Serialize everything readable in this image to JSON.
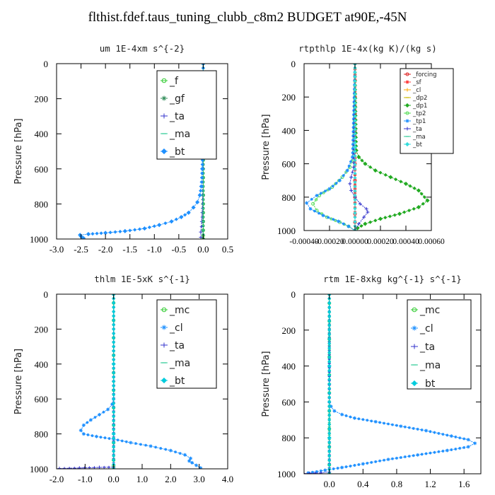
{
  "title": "flthist.fdef.taus_tuning_clubb_c8m2  BUDGET at90E,-45N",
  "chart_data": [
    {
      "type": "line",
      "title": "um  1E-4xm s^{-2}",
      "ylabel": "Pressure [hPa]",
      "xlim": [
        -3.0,
        0.5
      ],
      "ylim": [
        1000,
        0
      ],
      "xticks": [
        -3.0,
        -2.5,
        -2.0,
        -1.5,
        -1.0,
        -0.5,
        0.0,
        0.5
      ],
      "xtick_labels": [
        "-3.0",
        "-2.5",
        "-2.0",
        "-1.5",
        "-1.0",
        "-0.5",
        "0.0",
        "0.5"
      ],
      "yticks": [
        0,
        200,
        400,
        600,
        800,
        1000
      ],
      "ytick_labels": [
        "0",
        "200",
        "400",
        "600",
        "800",
        "1000"
      ],
      "legend_position": "top-right",
      "series": [
        {
          "name": "_f",
          "color": "#33cc33",
          "x": [
            0,
            0,
            0,
            0,
            0,
            0,
            0,
            0,
            0,
            0,
            0,
            0,
            0,
            0,
            0
          ],
          "y": [
            0,
            50,
            150,
            250,
            350,
            450,
            550,
            650,
            750,
            800,
            850,
            900,
            950,
            980,
            1000
          ]
        },
        {
          "name": "_gf",
          "color": "#2e8b57",
          "x": [
            0,
            0,
            0,
            0,
            0,
            0,
            0,
            0
          ],
          "y": [
            0,
            150,
            300,
            450,
            600,
            750,
            900,
            1000
          ]
        },
        {
          "name": "_ta",
          "color": "#3333cc",
          "x": [
            0,
            0,
            -0.01,
            -0.02,
            -0.03,
            -0.05,
            -0.05
          ],
          "y": [
            0,
            600,
            750,
            850,
            900,
            960,
            990
          ]
        },
        {
          "name": "_ma",
          "color": "#33cc99",
          "x": [
            0,
            0,
            0,
            0,
            0
          ],
          "y": [
            0,
            300,
            600,
            900,
            1000
          ]
        },
        {
          "name": "_bt",
          "color": "#1e90ff",
          "x": [
            0,
            -0.01,
            -0.02,
            -0.04,
            -0.07,
            -0.12,
            -0.2,
            -0.3,
            -0.45,
            -0.65,
            -0.9,
            -1.2,
            -1.6,
            -2.0,
            -2.35,
            -2.52,
            -2.5,
            -2.45
          ],
          "y": [
            0,
            450,
            600,
            700,
            750,
            790,
            820,
            850,
            875,
            900,
            920,
            940,
            955,
            965,
            972,
            977,
            985,
            995
          ]
        }
      ]
    },
    {
      "type": "line",
      "title": "rtpthlp  1E-4x(kg K)/(kg s)",
      "ylabel": "Pressure [hPa]",
      "xlim": [
        -0.0004,
        0.0006
      ],
      "ylim": [
        1000,
        0
      ],
      "xticks": [
        -0.0004,
        -0.0002,
        0.0,
        0.0002,
        0.0004,
        0.0006
      ],
      "xtick_labels": [
        "-0.00040",
        "-0.00020",
        "0.00000",
        "0.00020",
        "0.00040",
        "0.00060"
      ],
      "yticks": [
        0,
        200,
        400,
        600,
        800,
        1000
      ],
      "ytick_labels": [
        "0",
        "200",
        "400",
        "600",
        "800",
        "1000"
      ],
      "legend_position": "top-right",
      "series": [
        {
          "name": "_forcing",
          "color": "#dd2222",
          "x": [
            0,
            0,
            0,
            0,
            0,
            0,
            0,
            0,
            0,
            0,
            0,
            0
          ],
          "y": [
            0,
            100,
            200,
            300,
            400,
            500,
            600,
            700,
            800,
            900,
            950,
            1000
          ]
        },
        {
          "name": "_sf",
          "color": "#ff3333",
          "x": [
            0,
            0,
            0,
            0,
            0
          ],
          "y": [
            0,
            250,
            500,
            750,
            1000
          ]
        },
        {
          "name": "_cl",
          "color": "#ffaa00",
          "x": [
            0,
            0,
            0
          ],
          "y": [
            0,
            500,
            1000
          ]
        },
        {
          "name": "_dp2",
          "color": "#ccbb00",
          "x": [
            0,
            0,
            0
          ],
          "y": [
            0,
            500,
            1000
          ]
        },
        {
          "name": "_dp1",
          "color": "#22aa22",
          "x": [
            0,
            1e-05,
            3e-05,
            8e-05,
            0.00016,
            0.00028,
            0.0004,
            0.0005,
            0.00057,
            0.0005,
            0.00035,
            0.0002,
            8e-05,
            2e-05,
            0
          ],
          "y": [
            0,
            520,
            560,
            600,
            640,
            680,
            720,
            760,
            820,
            860,
            900,
            930,
            960,
            985,
            1000
          ]
        },
        {
          "name": "_tp2",
          "color": "#55dd55",
          "x": [
            0,
            -1e-05,
            -4e-05,
            -0.0001,
            -0.00018,
            -0.00028,
            -0.00033,
            -0.0003,
            -0.00022,
            -0.00012,
            -5e-05,
            0
          ],
          "y": [
            0,
            550,
            620,
            680,
            740,
            790,
            840,
            880,
            920,
            950,
            975,
            1000
          ]
        },
        {
          "name": "_tp1",
          "color": "#1e90ff",
          "x": [
            0,
            -2e-05,
            -6e-05,
            -0.00012,
            -0.0002,
            -0.0003,
            -0.00038,
            -0.00035,
            -0.00025,
            -0.00013,
            -5e-05,
            0
          ],
          "y": [
            0,
            560,
            640,
            700,
            750,
            790,
            835,
            870,
            910,
            945,
            975,
            1000
          ]
        },
        {
          "name": "_ta",
          "color": "#3333cc",
          "x": [
            0,
            -1e-05,
            -3e-05,
            -4e-05,
            -3e-05,
            0,
            4e-05,
            9e-05,
            0.0001,
            7e-05,
            3e-05,
            0
          ],
          "y": [
            0,
            620,
            680,
            720,
            760,
            800,
            840,
            870,
            890,
            920,
            960,
            1000
          ]
        },
        {
          "name": "_ma",
          "color": "#33cc99",
          "x": [
            0,
            0,
            0
          ],
          "y": [
            0,
            500,
            1000
          ]
        },
        {
          "name": "_bt",
          "color": "#33dddd",
          "x": [
            0,
            0,
            0
          ],
          "y": [
            0,
            500,
            1000
          ]
        }
      ]
    },
    {
      "type": "line",
      "title": "thlm  1E-5xK s^{-1}",
      "ylabel": "Pressure [hPa]",
      "xlim": [
        -2.0,
        4.0
      ],
      "ylim": [
        1000,
        0
      ],
      "xticks": [
        -2.0,
        -1.0,
        0.0,
        1.0,
        2.0,
        3.0,
        4.0
      ],
      "xtick_labels": [
        "-2.0",
        "-1.0",
        "0.0",
        "1.0",
        "2.0",
        "3.0",
        "4.0"
      ],
      "yticks": [
        0,
        200,
        400,
        600,
        800,
        1000
      ],
      "ytick_labels": [
        "0",
        "200",
        "400",
        "600",
        "800",
        "1000"
      ],
      "legend_position": "top-right",
      "series": [
        {
          "name": "_mc",
          "color": "#33cc33",
          "x": [
            0,
            0,
            0,
            0,
            0,
            0,
            0,
            0,
            0,
            0,
            0,
            0,
            0
          ],
          "y": [
            0,
            50,
            150,
            250,
            350,
            450,
            550,
            650,
            750,
            850,
            950,
            980,
            1000
          ]
        },
        {
          "name": "_cl",
          "color": "#1e90ff",
          "x": [
            0,
            0,
            -0.05,
            -0.2,
            -0.5,
            -0.8,
            -1.05,
            -1.15,
            -1.05,
            -0.6,
            0,
            0.6,
            1.3,
            2.0,
            2.5,
            2.7,
            2.65,
            2.75,
            2.9,
            3.05
          ],
          "y": [
            0,
            600,
            630,
            660,
            690,
            720,
            750,
            780,
            800,
            815,
            830,
            850,
            870,
            895,
            920,
            940,
            955,
            965,
            980,
            995
          ]
        },
        {
          "name": "_ta",
          "color": "#3333cc",
          "x": [
            0,
            0,
            -0.5,
            -1.2,
            -1.9
          ],
          "y": [
            0,
            990,
            992,
            995,
            998
          ]
        },
        {
          "name": "_ma",
          "color": "#33cc99",
          "x": [
            0,
            0,
            0
          ],
          "y": [
            0,
            500,
            1000
          ]
        },
        {
          "name": "_bt",
          "color": "#00ccdd",
          "x": [
            0,
            0,
            0,
            0
          ],
          "y": [
            0,
            400,
            800,
            1000
          ]
        }
      ]
    },
    {
      "type": "line",
      "title": "rtm  1E-8xkg kg^{-1} s^{-1}",
      "ylabel": "Pressure [hPa]",
      "xlim": [
        -0.3,
        1.8
      ],
      "ylim": [
        1000,
        0
      ],
      "xticks": [
        0.0,
        0.4,
        0.8,
        1.2,
        1.6
      ],
      "xtick_labels": [
        "0.0",
        "0.4",
        "0.8",
        "1.2",
        "1.6"
      ],
      "yticks": [
        0,
        200,
        400,
        600,
        800,
        1000
      ],
      "ytick_labels": [
        "0",
        "200",
        "400",
        "600",
        "800",
        "1000"
      ],
      "legend_position": "top-right",
      "series": [
        {
          "name": "_mc",
          "color": "#33cc33",
          "x": [
            0,
            0,
            0,
            0,
            0,
            0,
            0,
            0,
            0,
            0,
            0,
            0
          ],
          "y": [
            0,
            50,
            150,
            250,
            350,
            450,
            550,
            650,
            750,
            850,
            950,
            1000
          ]
        },
        {
          "name": "_cl",
          "color": "#1e90ff",
          "x": [
            0,
            0,
            0.02,
            0.06,
            0.15,
            0.3,
            0.55,
            0.85,
            1.15,
            1.45,
            1.65,
            1.73,
            1.65,
            1.4,
            1.05,
            0.7,
            0.4,
            0.15,
            -0.05,
            -0.25
          ],
          "y": [
            0,
            600,
            625,
            650,
            670,
            690,
            710,
            735,
            760,
            790,
            810,
            830,
            850,
            870,
            895,
            920,
            945,
            965,
            980,
            995
          ]
        },
        {
          "name": "_ta",
          "color": "#3333cc",
          "x": [
            0,
            0,
            -0.1,
            -0.3
          ],
          "y": [
            0,
            990,
            995,
            998
          ]
        },
        {
          "name": "_ma",
          "color": "#33cc99",
          "x": [
            0,
            0,
            0
          ],
          "y": [
            0,
            500,
            1000
          ]
        },
        {
          "name": "_bt",
          "color": "#00ccdd",
          "x": [
            0,
            0,
            0,
            0
          ],
          "y": [
            0,
            400,
            800,
            1000
          ]
        }
      ]
    }
  ]
}
